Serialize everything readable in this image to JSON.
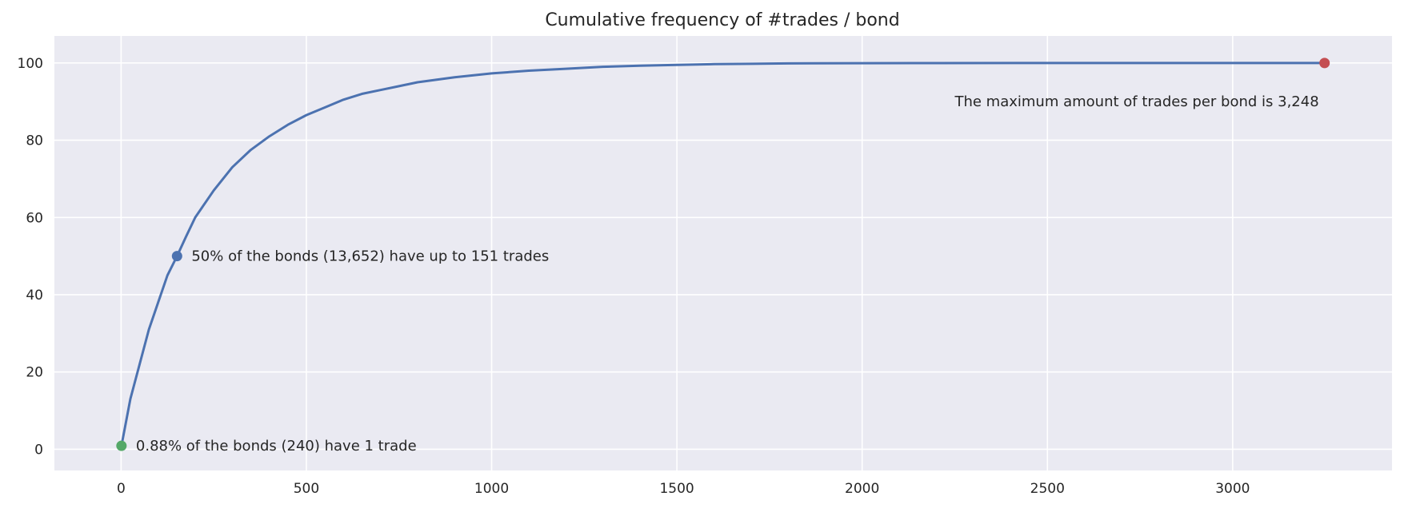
{
  "chart_data": {
    "type": "line",
    "title": "Cumulative frequency of #trades / bond",
    "xlabel": "",
    "ylabel": "",
    "xlim": [
      -180,
      3430
    ],
    "ylim": [
      -5.5,
      107
    ],
    "x_ticks": [
      0,
      500,
      1000,
      1500,
      2000,
      2500,
      3000
    ],
    "y_ticks": [
      0,
      20,
      40,
      60,
      80,
      100
    ],
    "grid": true,
    "legend": "none",
    "colors": {
      "background": "#EAEAF2",
      "grid": "#FFFFFF",
      "line": "#4C72B0",
      "marker_min": "#55A868",
      "marker_median": "#4C72B0",
      "marker_max": "#C44E52",
      "text": "#262626"
    },
    "series": [
      {
        "x": [
          1,
          25,
          50,
          75,
          100,
          125,
          151,
          175,
          200,
          250,
          300,
          350,
          400,
          450,
          500,
          550,
          600,
          650,
          700,
          750,
          800,
          900,
          1000,
          1100,
          1200,
          1300,
          1400,
          1500,
          1600,
          1700,
          1800,
          2000,
          2200,
          2500,
          2800,
          3000,
          3248
        ],
        "y": [
          0.88,
          13,
          22,
          31,
          38,
          45,
          50,
          55,
          60,
          67,
          73,
          77.5,
          81,
          84,
          86.5,
          88.5,
          90.5,
          92,
          93,
          94,
          95,
          96.3,
          97.3,
          98,
          98.5,
          99,
          99.3,
          99.5,
          99.7,
          99.8,
          99.9,
          99.95,
          99.97,
          100,
          100,
          100,
          100
        ]
      }
    ],
    "highlight_points": [
      {
        "name": "min",
        "x": 1,
        "y": 0.88
      },
      {
        "name": "median",
        "x": 151,
        "y": 50
      },
      {
        "name": "max",
        "x": 3248,
        "y": 100
      }
    ],
    "annotations": [
      {
        "text": "0.88% of the bonds (240) have 1 trade",
        "x": 40,
        "y": 0.88
      },
      {
        "text": "50% of the bonds (13,652) have up to 151 trades",
        "x": 190,
        "y": 50
      },
      {
        "text": "The maximum amount of trades per bond is 3,248",
        "x": 2250,
        "y": 90
      }
    ]
  }
}
